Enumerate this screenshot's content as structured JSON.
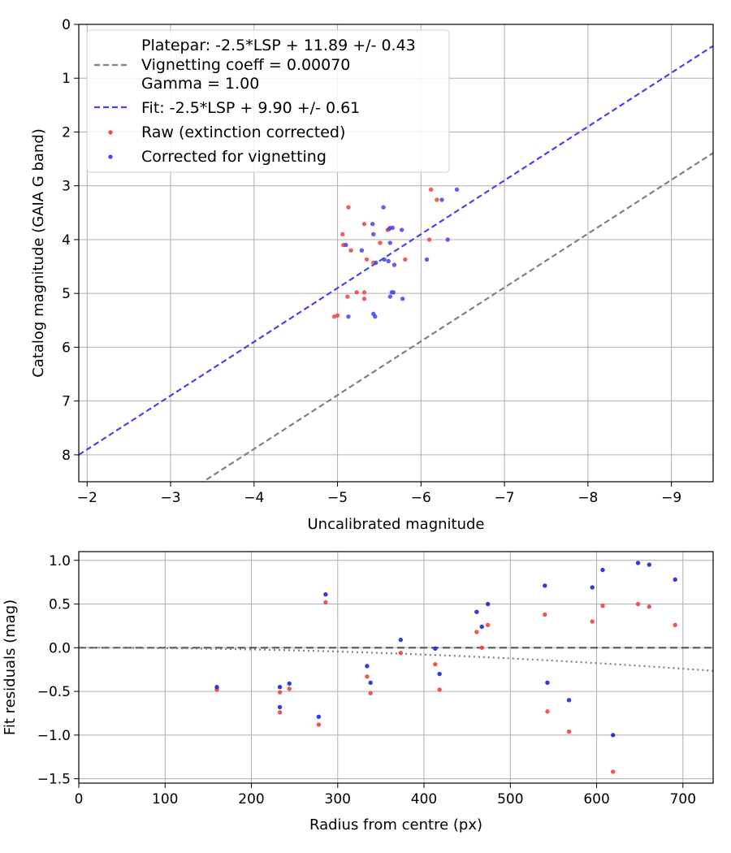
{
  "chart_data": [
    {
      "type": "scatter",
      "id": "top",
      "xlabel": "Uncalibrated magnitude",
      "ylabel": "Catalog magnitude (GAIA G band)",
      "xlim": [
        -1.9,
        -9.5
      ],
      "ylim": [
        8.5,
        0
      ],
      "xticks": [
        -2,
        -3,
        -4,
        -5,
        -6,
        -7,
        -8,
        -9
      ],
      "xtick_labels": [
        "−2",
        "−3",
        "−4",
        "−5",
        "−6",
        "−7",
        "−8",
        "−9"
      ],
      "yticks": [
        0,
        1,
        2,
        3,
        4,
        5,
        6,
        7,
        8
      ],
      "ytick_labels": [
        "0",
        "1",
        "2",
        "3",
        "4",
        "5",
        "6",
        "7",
        "8"
      ],
      "grid": true,
      "legend_position": "top-left",
      "legend": [
        {
          "label": "Platepar: -2.5*LSP + 11.89 +/- 0.43",
          "style": "none"
        },
        {
          "label": "Vignetting coeff = 0.00070",
          "style": "dash",
          "color": "#808080"
        },
        {
          "label": "Gamma = 1.00",
          "style": "none"
        },
        {
          "label": "Fit: -2.5*LSP + 9.90 +/- 0.61",
          "style": "dash",
          "color": "#4444ee"
        },
        {
          "label": "Raw (extinction corrected)",
          "style": "dot",
          "color": "#ee4444"
        },
        {
          "label": "Corrected for vignetting",
          "style": "dot",
          "color": "#4444ee"
        }
      ],
      "lines": [
        {
          "name": "Platepar",
          "slope": 1,
          "intercept": 11.89,
          "color": "#808080"
        },
        {
          "name": "Fit",
          "slope": 1,
          "intercept": 9.9,
          "color": "#4444ee"
        }
      ],
      "series": [
        {
          "name": "Raw (extinction corrected)",
          "color": "#ee4444",
          "points": [
            [
              -5.13,
              3.4
            ],
            [
              -5.32,
              3.71
            ],
            [
              -5.06,
              3.9
            ],
            [
              -5.07,
              4.1
            ],
            [
              -5.16,
              4.2
            ],
            [
              -5.35,
              4.37
            ],
            [
              -5.43,
              4.43
            ],
            [
              -5.51,
              4.06
            ],
            [
              -5.6,
              3.82
            ],
            [
              -5.63,
              3.78
            ],
            [
              -5.81,
              4.37
            ],
            [
              -5.23,
              4.98
            ],
            [
              -5.32,
              4.98
            ],
            [
              -5.32,
              5.1
            ],
            [
              -5.12,
              5.06
            ],
            [
              -4.96,
              5.43
            ],
            [
              -5.0,
              5.41
            ],
            [
              -6.12,
              3.07
            ],
            [
              -6.19,
              3.26
            ],
            [
              -6.1,
              4.0
            ]
          ]
        },
        {
          "name": "Corrected for vignetting",
          "color": "#4444ee",
          "points": [
            [
              -5.1,
              4.1
            ],
            [
              -5.13,
              5.43
            ],
            [
              -5.29,
              4.2
            ],
            [
              -5.42,
              3.71
            ],
            [
              -5.43,
              3.9
            ],
            [
              -5.43,
              5.38
            ],
            [
              -5.45,
              5.43
            ],
            [
              -5.46,
              4.43
            ],
            [
              -5.55,
              3.4
            ],
            [
              -5.56,
              4.37
            ],
            [
              -5.61,
              4.4
            ],
            [
              -5.62,
              3.8
            ],
            [
              -5.63,
              4.06
            ],
            [
              -5.63,
              5.06
            ],
            [
              -5.65,
              4.98
            ],
            [
              -5.66,
              3.78
            ],
            [
              -5.67,
              4.98
            ],
            [
              -5.68,
              4.47
            ],
            [
              -5.77,
              3.82
            ],
            [
              -5.78,
              5.1
            ],
            [
              -6.07,
              4.37
            ],
            [
              -6.25,
              3.26
            ],
            [
              -6.32,
              4.0
            ],
            [
              -6.43,
              3.07
            ]
          ]
        }
      ]
    },
    {
      "type": "scatter",
      "id": "bottom",
      "xlabel": "Radius from centre (px)",
      "ylabel": "Fit residuals (mag)",
      "xlim": [
        0,
        735
      ],
      "ylim": [
        -1.55,
        1.1
      ],
      "xticks": [
        0,
        100,
        200,
        300,
        400,
        500,
        600,
        700
      ],
      "xtick_labels": [
        "0",
        "100",
        "200",
        "300",
        "400",
        "500",
        "600",
        "700"
      ],
      "yticks": [
        -1.5,
        -1.0,
        -0.5,
        0.0,
        0.5,
        1.0
      ],
      "ytick_labels": [
        "−1.5",
        "−1.0",
        "−0.5",
        "0.0",
        "0.5",
        "1.0"
      ],
      "grid": true,
      "reference_lines": [
        {
          "name": "zero",
          "style": "dash",
          "color": "#555555"
        },
        {
          "name": "vignetting curve",
          "style": "dot",
          "color": "#808080",
          "coeff": 0.0007
        }
      ],
      "series": [
        {
          "name": "Raw (extinction corrected)",
          "color": "#ee4444",
          "points": [
            [
              160,
              -0.48
            ],
            [
              233,
              -0.51
            ],
            [
              233,
              -0.74
            ],
            [
              244,
              -0.47
            ],
            [
              278,
              -0.88
            ],
            [
              286,
              0.52
            ],
            [
              334,
              -0.33
            ],
            [
              338,
              -0.52
            ],
            [
              373,
              -0.06
            ],
            [
              413,
              -0.19
            ],
            [
              418,
              -0.48
            ],
            [
              461,
              0.18
            ],
            [
              467,
              0.0
            ],
            [
              474,
              0.26
            ],
            [
              540,
              0.38
            ],
            [
              543,
              -0.73
            ],
            [
              568,
              -0.96
            ],
            [
              595,
              0.3
            ],
            [
              607,
              0.48
            ],
            [
              619,
              -1.42
            ],
            [
              648,
              0.5
            ],
            [
              661,
              0.47
            ],
            [
              691,
              0.26
            ]
          ]
        },
        {
          "name": "Corrected for vignetting",
          "color": "#2222dd",
          "points": [
            [
              160,
              -0.45
            ],
            [
              233,
              -0.45
            ],
            [
              233,
              -0.68
            ],
            [
              244,
              -0.41
            ],
            [
              278,
              -0.79
            ],
            [
              286,
              0.61
            ],
            [
              334,
              -0.21
            ],
            [
              338,
              -0.4
            ],
            [
              373,
              0.09
            ],
            [
              413,
              -0.01
            ],
            [
              418,
              -0.3
            ],
            [
              461,
              0.41
            ],
            [
              467,
              0.24
            ],
            [
              474,
              0.5
            ],
            [
              540,
              0.71
            ],
            [
              543,
              -0.4
            ],
            [
              568,
              -0.6
            ],
            [
              595,
              0.69
            ],
            [
              607,
              0.89
            ],
            [
              619,
              -1.0
            ],
            [
              648,
              0.97
            ],
            [
              661,
              0.95
            ],
            [
              691,
              0.78
            ]
          ]
        }
      ]
    }
  ]
}
